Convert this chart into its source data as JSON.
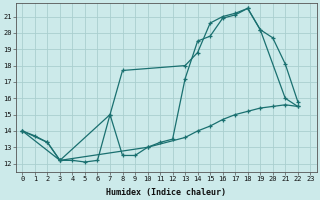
{
  "xlabel": "Humidex (Indice chaleur)",
  "bg_color": "#cceaea",
  "grid_color": "#aacfcf",
  "line_color": "#1a7070",
  "xlim": [
    -0.5,
    23.5
  ],
  "ylim": [
    11.5,
    21.8
  ],
  "yticks": [
    12,
    13,
    14,
    15,
    16,
    17,
    18,
    19,
    20,
    21
  ],
  "xticks": [
    0,
    1,
    2,
    3,
    4,
    5,
    6,
    7,
    8,
    9,
    10,
    11,
    12,
    13,
    14,
    15,
    16,
    17,
    18,
    19,
    20,
    21,
    22,
    23
  ],
  "line1_x": [
    0,
    1,
    2,
    3,
    4,
    5,
    6,
    7,
    8,
    9,
    10,
    11,
    12,
    13,
    14,
    15,
    16,
    17,
    18,
    19,
    20,
    21,
    22
  ],
  "line1_y": [
    14.0,
    13.7,
    13.3,
    12.2,
    12.2,
    12.1,
    12.2,
    15.0,
    12.5,
    12.5,
    13.0,
    13.3,
    13.5,
    17.2,
    19.5,
    19.8,
    20.9,
    21.1,
    21.5,
    20.2,
    19.7,
    18.1,
    15.8
  ],
  "line2_x": [
    0,
    2,
    3,
    7,
    8,
    13,
    14,
    15,
    16,
    17,
    18,
    19,
    21,
    22
  ],
  "line2_y": [
    14.0,
    13.3,
    12.2,
    15.0,
    17.7,
    18.0,
    18.8,
    20.6,
    21.0,
    21.2,
    21.5,
    20.2,
    16.0,
    15.5
  ],
  "line3_x": [
    0,
    3,
    10,
    13,
    14,
    15,
    16,
    17,
    18,
    19,
    20,
    21,
    22
  ],
  "line3_y": [
    14.0,
    12.2,
    13.0,
    13.6,
    14.0,
    14.3,
    14.7,
    15.0,
    15.2,
    15.4,
    15.5,
    15.6,
    15.5
  ],
  "marker": "+",
  "markersize": 3,
  "linewidth": 0.9,
  "xlabel_fontsize": 6,
  "tick_fontsize": 5
}
